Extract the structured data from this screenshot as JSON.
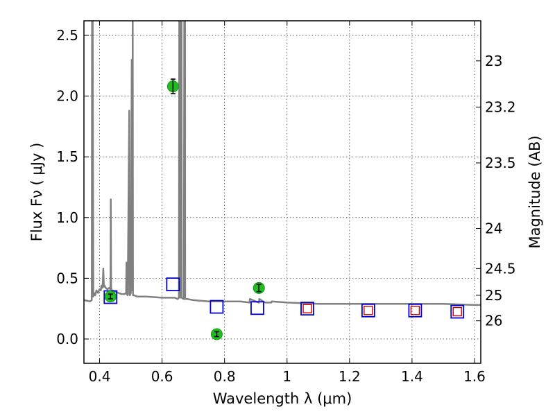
{
  "chart_data": {
    "type": "scatter",
    "title": "",
    "xlabel": "Wavelength  λ (μm)",
    "ylabel": "Flux  Fν  ( μJy )",
    "ylabel_right": "Magnitude (AB)",
    "xlim": [
      0.35,
      1.62
    ],
    "ylim": [
      -0.2,
      2.62
    ],
    "grid": true,
    "x_ticks": [
      0.4,
      0.6,
      0.8,
      1.0,
      1.2,
      1.4,
      1.6
    ],
    "x_tick_labels": [
      "0.4",
      "0.6",
      "0.8",
      "1",
      "1.2",
      "1.4",
      "1.6"
    ],
    "y_ticks": [
      0.0,
      0.5,
      1.0,
      1.5,
      2.0,
      2.5
    ],
    "y_tick_labels": [
      "0.0",
      "0.5",
      "1.0",
      "1.5",
      "2.0",
      "2.5"
    ],
    "right_axis_ticks": [
      {
        "label": "23",
        "flux": 2.29
      },
      {
        "label": "23.2",
        "flux": 1.91
      },
      {
        "label": "23.5",
        "flux": 1.45
      },
      {
        "label": "24",
        "flux": 0.91
      },
      {
        "label": "24.5",
        "flux": 0.58
      },
      {
        "label": "25",
        "flux": 0.36
      },
      {
        "label": "26",
        "flux": 0.15
      }
    ],
    "series": [
      {
        "kind": "line",
        "color": "#808080",
        "x": [
          0.35,
          0.37,
          0.375,
          0.376,
          0.378,
          0.38,
          0.382,
          0.386,
          0.39,
          0.395,
          0.4,
          0.404,
          0.406,
          0.408,
          0.41,
          0.412,
          0.414,
          0.416,
          0.42,
          0.425,
          0.43,
          0.434,
          0.435,
          0.436,
          0.437,
          0.44,
          0.45,
          0.46,
          0.47,
          0.48,
          0.485,
          0.486,
          0.487,
          0.49,
          0.495,
          0.496,
          0.497,
          0.5,
          0.503,
          0.505,
          0.506,
          0.507,
          0.51,
          0.52,
          0.55,
          0.6,
          0.64,
          0.65,
          0.654,
          0.655,
          0.6555,
          0.656,
          0.657,
          0.6575,
          0.658,
          0.66,
          0.662,
          0.6625,
          0.663,
          0.668,
          0.67,
          0.671,
          0.6715,
          0.672,
          0.673,
          0.6735,
          0.674,
          0.68,
          0.7,
          0.75,
          0.8,
          0.85,
          0.88,
          0.881,
          0.9,
          0.91,
          0.911,
          0.93,
          0.95,
          0.951,
          1.0,
          1.1,
          1.2,
          1.3,
          1.4,
          1.5,
          1.6,
          1.62
        ],
        "y": [
          0.32,
          0.31,
          0.32,
          2.62,
          2.62,
          0.35,
          0.38,
          0.36,
          0.4,
          0.38,
          0.41,
          0.4,
          0.44,
          0.42,
          0.44,
          0.58,
          0.43,
          0.44,
          0.42,
          0.41,
          0.42,
          0.41,
          0.45,
          1.15,
          0.42,
          0.4,
          0.39,
          0.38,
          0.37,
          0.37,
          0.38,
          0.63,
          0.37,
          0.36,
          1.88,
          0.37,
          0.36,
          0.38,
          2.3,
          0.4,
          2.62,
          0.36,
          0.36,
          0.35,
          0.35,
          0.34,
          0.34,
          0.33,
          0.34,
          2.62,
          2.62,
          0.38,
          2.62,
          2.62,
          0.35,
          0.34,
          0.34,
          2.62,
          0.34,
          0.33,
          0.34,
          2.62,
          2.62,
          0.33,
          0.34,
          2.62,
          0.33,
          0.33,
          0.32,
          0.31,
          0.31,
          0.31,
          0.3,
          0.33,
          0.31,
          0.3,
          0.33,
          0.3,
          0.3,
          0.31,
          0.3,
          0.29,
          0.29,
          0.29,
          0.29,
          0.29,
          0.28,
          0.28
        ]
      },
      {
        "kind": "markers",
        "marker": "square-outline",
        "color": "#0000cc",
        "x": [
          0.435,
          0.635,
          0.775,
          0.905,
          1.065,
          1.26,
          1.41,
          1.545
        ],
        "y": [
          0.345,
          0.45,
          0.265,
          0.255,
          0.25,
          0.235,
          0.235,
          0.225
        ]
      },
      {
        "kind": "markers",
        "marker": "square-outline-small",
        "color": "#cc0000",
        "x": [
          1.065,
          1.26,
          1.41,
          1.545
        ],
        "y": [
          0.25,
          0.235,
          0.235,
          0.225
        ]
      },
      {
        "kind": "markers",
        "marker": "circle-errorbar",
        "color": "#22bb22",
        "x": [
          0.435,
          0.635,
          0.775,
          0.91
        ],
        "y": [
          0.35,
          2.08,
          0.04,
          0.42
        ],
        "yerr": [
          0.02,
          0.06,
          0.02,
          0.03
        ]
      }
    ]
  }
}
